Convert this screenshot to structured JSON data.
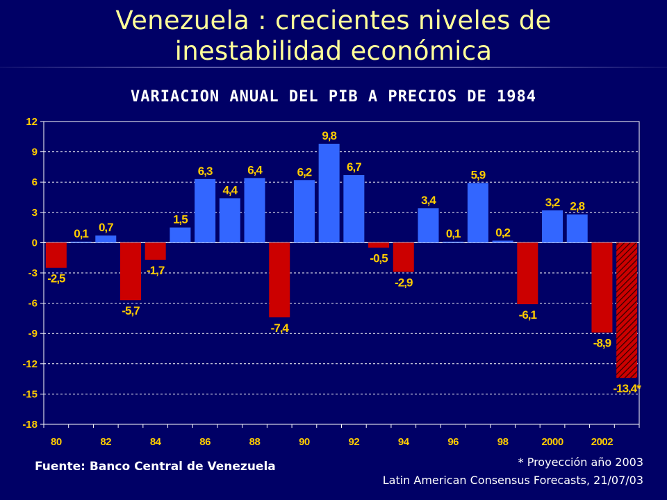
{
  "slide": {
    "title_line1": "Venezuela : crecientes niveles de",
    "title_line2": "inestabilidad económica",
    "source": "Fuente:  Banco Central de Venezuela",
    "note_projection": "* Proyección año 2003",
    "note_forecast": "Latin American Consensus Forecasts, 21/07/03"
  },
  "colors": {
    "background": "#000066",
    "positive": "#3366FF",
    "negative": "#CC0000",
    "label": "#FFCC00",
    "title": "#FFFF99"
  },
  "chart_data": {
    "type": "bar",
    "title": "VARIACION ANUAL DEL PIB A PRECIOS DE 1984",
    "xlabel": "",
    "ylabel": "",
    "ylim": [
      -18,
      12
    ],
    "yticks": [
      12,
      9,
      6,
      3,
      0,
      -3,
      -6,
      -9,
      -12,
      -15,
      -18
    ],
    "grid": true,
    "categories": [
      "1980",
      "1981",
      "1982",
      "1983",
      "1984",
      "1985",
      "1986",
      "1987",
      "1988",
      "1989",
      "1990",
      "1991",
      "1992",
      "1993",
      "1994",
      "1995",
      "1996",
      "1997",
      "1998",
      "1999",
      "2000",
      "2001",
      "2002",
      "2003"
    ],
    "xtick_labels": [
      "80",
      "82",
      "84",
      "86",
      "88",
      "90",
      "92",
      "94",
      "96",
      "98",
      "2000",
      "2002"
    ],
    "values": [
      -2.5,
      0.1,
      0.7,
      -5.7,
      -1.7,
      1.5,
      6.3,
      4.4,
      6.4,
      -7.4,
      6.2,
      9.8,
      6.7,
      -0.5,
      -2.9,
      3.4,
      0.1,
      5.9,
      0.2,
      -6.1,
      3.2,
      2.8,
      -8.9,
      -13.4
    ],
    "data_labels": [
      "-2,5",
      "0,1",
      "0,7",
      "-5,7",
      "-1,7",
      "1,5",
      "6,3",
      "4,4",
      "6,4",
      "-7,4",
      "6,2",
      "9,8",
      "6,7",
      "-0,5",
      "-2,9",
      "3,4",
      "0,1",
      "5,9",
      "0,2",
      "-6,1",
      "3,2",
      "2,8",
      "-8,9",
      "-13,4*"
    ],
    "projected": [
      false,
      false,
      false,
      false,
      false,
      false,
      false,
      false,
      false,
      false,
      false,
      false,
      false,
      false,
      false,
      false,
      false,
      false,
      false,
      false,
      false,
      false,
      false,
      true
    ]
  }
}
